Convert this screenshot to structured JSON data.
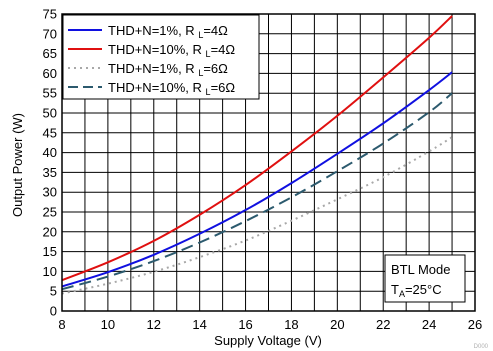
{
  "chart_data": {
    "type": "line",
    "xlabel": "Supply Voltage (V)",
    "ylabel": "Output Power (W)",
    "xlim": [
      8,
      26
    ],
    "ylim": [
      0,
      75
    ],
    "xticks": [
      8,
      10,
      12,
      14,
      16,
      18,
      20,
      22,
      24,
      26
    ],
    "yticks": [
      0,
      5,
      10,
      15,
      20,
      25,
      30,
      35,
      40,
      45,
      50,
      55,
      60,
      65,
      70,
      75
    ],
    "x_minor_step": 1,
    "grid": true,
    "legend_position": "top-left",
    "series": [
      {
        "name": "THD+N=1%, R L=4Ω",
        "name_main": "THD+N=1%, R",
        "name_sub": "L",
        "name_tail": "=4Ω",
        "color": "#1010e0",
        "style": "solid",
        "x": [
          8,
          10,
          12,
          14,
          16,
          18,
          20,
          22,
          24,
          25
        ],
        "y": [
          6.2,
          9.8,
          14.2,
          19.5,
          25.5,
          32.3,
          39.7,
          47.4,
          55.8,
          60.3
        ]
      },
      {
        "name": "THD+N=10%, R L=4Ω",
        "name_main": "THD+N=10%, R",
        "name_sub": "L",
        "name_tail": "=4Ω",
        "color": "#e01010",
        "style": "solid",
        "x": [
          8,
          10,
          12,
          14,
          16,
          18,
          20,
          22,
          24,
          25
        ],
        "y": [
          7.8,
          12.3,
          17.7,
          24.3,
          31.8,
          40.3,
          49.3,
          59.0,
          69.0,
          74.5
        ]
      },
      {
        "name": "THD+N=1%, R L=6Ω",
        "name_main": "THD+N=1%, R",
        "name_sub": "L",
        "name_tail": "=6Ω",
        "color": "#a8a8a8",
        "style": "dotted",
        "x": [
          8,
          10,
          12,
          14,
          16,
          18,
          20,
          22,
          24,
          25
        ],
        "y": [
          4.4,
          6.9,
          9.9,
          13.6,
          17.8,
          22.8,
          28.2,
          33.8,
          40.3,
          43.9
        ]
      },
      {
        "name": "THD+N=10%, R L=6Ω",
        "name_main": "THD+N=10%, R",
        "name_sub": "L",
        "name_tail": "=6Ω",
        "color": "#2c5a6e",
        "style": "dashed",
        "x": [
          8,
          10,
          12,
          14,
          16,
          18,
          20,
          22,
          24,
          25
        ],
        "y": [
          5.5,
          8.7,
          12.6,
          17.3,
          22.7,
          28.7,
          35.3,
          42.3,
          50.2,
          55.0
        ]
      }
    ],
    "annotation": {
      "line1": "BTL Mode",
      "line2_main": "T",
      "line2_sub": "A",
      "line2_tail": "=25°C"
    },
    "watermark": "D000"
  }
}
